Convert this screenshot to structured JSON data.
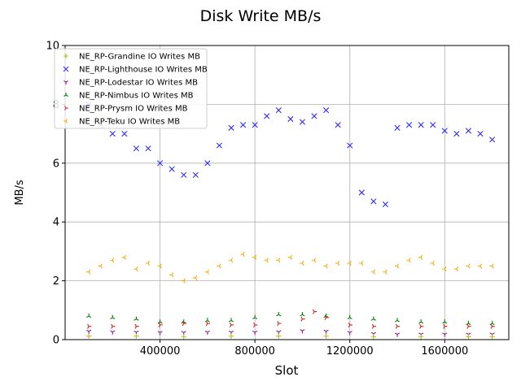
{
  "chart_data": {
    "type": "scatter",
    "title": "Disk Write MB/s",
    "xlabel": "Slot",
    "ylabel": "MB/s",
    "xlim": [
      0,
      1870000
    ],
    "ylim": [
      0,
      10
    ],
    "x_ticks": [
      400000,
      800000,
      1200000,
      1600000
    ],
    "x_tick_labels": [
      "400000",
      "800000",
      "1200000",
      "1600000"
    ],
    "y_ticks": [
      0,
      2,
      4,
      6,
      8,
      10
    ],
    "y_tick_labels": [
      "0",
      "2",
      "4",
      "6",
      "8",
      "10"
    ],
    "grid": true,
    "legend_position": "top-left",
    "series": [
      {
        "name": "NE_RP-Grandine IO Writes MB",
        "color": "#bcbd22",
        "marker": "plus",
        "x": [
          100000,
          300000,
          500000,
          700000,
          900000,
          1100000,
          1300000,
          1500000,
          1700000,
          1800000
        ],
        "y": [
          0.12,
          0.12,
          0.1,
          0.12,
          0.12,
          0.12,
          0.1,
          0.1,
          0.1,
          0.1
        ]
      },
      {
        "name": "NE_RP-Lighthouse IO Writes MB",
        "color": "#3030ff",
        "marker": "x",
        "x": [
          100000,
          150000,
          200000,
          250000,
          300000,
          350000,
          400000,
          450000,
          500000,
          550000,
          600000,
          650000,
          700000,
          750000,
          800000,
          850000,
          900000,
          950000,
          1000000,
          1050000,
          1100000,
          1150000,
          1200000,
          1250000,
          1300000,
          1350000,
          1400000,
          1450000,
          1500000,
          1550000,
          1600000,
          1650000,
          1700000,
          1750000,
          1800000
        ],
        "y": [
          8.0,
          7.3,
          7.0,
          7.0,
          6.5,
          6.5,
          6.0,
          5.8,
          5.6,
          5.6,
          6.0,
          6.6,
          7.2,
          7.3,
          7.3,
          7.6,
          7.8,
          7.5,
          7.4,
          7.6,
          7.8,
          7.3,
          6.6,
          5.0,
          4.7,
          4.6,
          7.2,
          7.3,
          7.3,
          7.3,
          7.1,
          7.0,
          7.1,
          7.0,
          6.8
        ]
      },
      {
        "name": "NE_RP-Lodestar IO Writes MB",
        "color": "#8b1f8b",
        "marker": "tri_down",
        "x": [
          100000,
          200000,
          300000,
          400000,
          500000,
          600000,
          700000,
          800000,
          900000,
          1000000,
          1100000,
          1200000,
          1300000,
          1400000,
          1500000,
          1600000,
          1700000,
          1800000
        ],
        "y": [
          0.28,
          0.26,
          0.25,
          0.24,
          0.24,
          0.25,
          0.25,
          0.25,
          0.26,
          0.3,
          0.28,
          0.24,
          0.2,
          0.18,
          0.18,
          0.18,
          0.18,
          0.18
        ]
      },
      {
        "name": "NE_RP-Nimbus IO Writes MB",
        "color": "#008000",
        "marker": "tri_up",
        "x": [
          100000,
          200000,
          300000,
          400000,
          500000,
          600000,
          700000,
          800000,
          900000,
          1000000,
          1100000,
          1200000,
          1300000,
          1400000,
          1500000,
          1600000,
          1700000,
          1800000
        ],
        "y": [
          0.8,
          0.75,
          0.7,
          0.6,
          0.6,
          0.65,
          0.65,
          0.75,
          0.85,
          0.85,
          0.8,
          0.75,
          0.7,
          0.65,
          0.6,
          0.6,
          0.55,
          0.55
        ]
      },
      {
        "name": "NE_RP-Prysm IO Writes MB",
        "color": "#d62020",
        "marker": "tri_left",
        "x": [
          100000,
          200000,
          300000,
          400000,
          500000,
          600000,
          700000,
          800000,
          900000,
          1000000,
          1050000,
          1100000,
          1200000,
          1300000,
          1400000,
          1500000,
          1600000,
          1700000,
          1800000
        ],
        "y": [
          0.45,
          0.45,
          0.45,
          0.5,
          0.55,
          0.55,
          0.5,
          0.5,
          0.55,
          0.7,
          0.95,
          0.75,
          0.5,
          0.45,
          0.45,
          0.45,
          0.45,
          0.45,
          0.45
        ]
      },
      {
        "name": "NE_RP-Teku IO Writes MB",
        "color": "#ffa500",
        "marker": "tri_right",
        "x": [
          100000,
          150000,
          200000,
          250000,
          300000,
          350000,
          400000,
          450000,
          500000,
          550000,
          600000,
          650000,
          700000,
          750000,
          800000,
          850000,
          900000,
          950000,
          1000000,
          1050000,
          1100000,
          1150000,
          1200000,
          1250000,
          1300000,
          1350000,
          1400000,
          1450000,
          1500000,
          1550000,
          1600000,
          1650000,
          1700000,
          1750000,
          1800000
        ],
        "y": [
          2.3,
          2.5,
          2.7,
          2.8,
          2.4,
          2.6,
          2.5,
          2.2,
          2.0,
          2.1,
          2.3,
          2.5,
          2.7,
          2.9,
          2.8,
          2.7,
          2.7,
          2.8,
          2.6,
          2.7,
          2.5,
          2.6,
          2.6,
          2.6,
          2.3,
          2.3,
          2.5,
          2.7,
          2.8,
          2.6,
          2.4,
          2.4,
          2.5,
          2.5,
          2.5
        ]
      }
    ]
  }
}
